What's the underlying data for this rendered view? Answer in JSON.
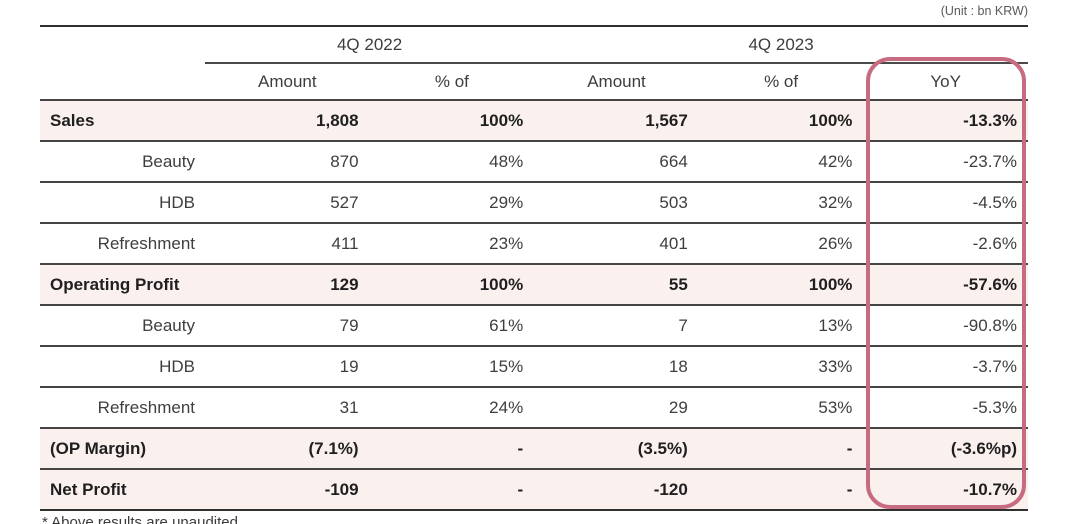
{
  "meta": {
    "unit_note": "(Unit : bn KRW)",
    "footnote": "* Above results are unaudited"
  },
  "colors": {
    "accent_outline": "#c76b80",
    "highlight_row_bg": "#faf1ef",
    "rule_dark": "#303030"
  },
  "table": {
    "column_groups": [
      {
        "label": "4Q 2022"
      },
      {
        "label": "4Q 2023"
      }
    ],
    "columns": [
      "Amount",
      "% of",
      "Amount",
      "% of",
      "YoY"
    ],
    "highlighted_column": "YoY",
    "rows": [
      {
        "label": "Sales",
        "emphasis": true,
        "cells": [
          "1,808",
          "100%",
          "1,567",
          "100%",
          "-13.3%"
        ]
      },
      {
        "label": "Beauty",
        "emphasis": false,
        "cells": [
          "870",
          "48%",
          "664",
          "42%",
          "-23.7%"
        ]
      },
      {
        "label": "HDB",
        "emphasis": false,
        "cells": [
          "527",
          "29%",
          "503",
          "32%",
          "-4.5%"
        ]
      },
      {
        "label": "Refreshment",
        "emphasis": false,
        "cells": [
          "411",
          "23%",
          "401",
          "26%",
          "-2.6%"
        ]
      },
      {
        "label": "Operating Profit",
        "emphasis": true,
        "cells": [
          "129",
          "100%",
          "55",
          "100%",
          "-57.6%"
        ]
      },
      {
        "label": "Beauty",
        "emphasis": false,
        "cells": [
          "79",
          "61%",
          "7",
          "13%",
          "-90.8%"
        ]
      },
      {
        "label": "HDB",
        "emphasis": false,
        "cells": [
          "19",
          "15%",
          "18",
          "33%",
          "-3.7%"
        ]
      },
      {
        "label": "Refreshment",
        "emphasis": false,
        "cells": [
          "31",
          "24%",
          "29",
          "53%",
          "-5.3%"
        ]
      },
      {
        "label": "(OP Margin)",
        "emphasis": true,
        "cells": [
          "(7.1%)",
          "-",
          "(3.5%)",
          "-",
          "(-3.6%p)"
        ]
      },
      {
        "label": "Net Profit",
        "emphasis": true,
        "cells": [
          "-109",
          "-",
          "-120",
          "-",
          "-10.7%"
        ]
      }
    ]
  }
}
